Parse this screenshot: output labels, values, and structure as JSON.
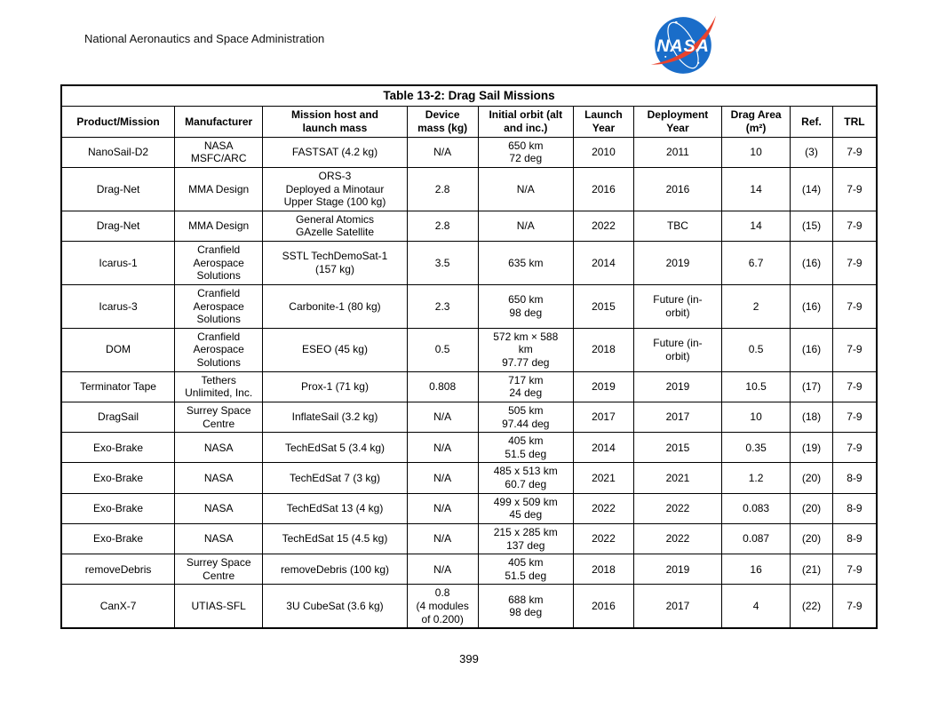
{
  "page": {
    "header_text": "National Aeronautics and Space Administration",
    "page_number": "399"
  },
  "logo": {
    "name": "nasa-insignia",
    "label": "NASA",
    "blue": "#1a6dc9",
    "red": "#e8432e",
    "white": "#ffffff"
  },
  "table": {
    "title": "Table 13-2: Drag Sail Missions",
    "columns": [
      "Product/Mission",
      "Manufacturer",
      "Mission host and\nlaunch mass",
      "Device\nmass (kg)",
      "Initial orbit (alt\nand inc.)",
      "Launch\nYear",
      "Deployment\nYear",
      "Drag Area\n(m²)",
      "Ref.",
      "TRL"
    ],
    "rows": [
      [
        "NanoSail-D2",
        "NASA\nMSFC/ARC",
        "FASTSAT (4.2 kg)",
        "N/A",
        "650 km\n72 deg",
        "2010",
        "2011",
        "10",
        "(3)",
        "7-9"
      ],
      [
        "Drag-Net",
        "MMA Design",
        "ORS-3\nDeployed a Minotaur\nUpper Stage (100 kg)",
        "2.8",
        "N/A",
        "2016",
        "2016",
        "14",
        "(14)",
        "7-9"
      ],
      [
        "Drag-Net",
        "MMA Design",
        "General Atomics\nGAzelle Satellite",
        "2.8",
        "N/A",
        "2022",
        "TBC",
        "14",
        "(15)",
        "7-9"
      ],
      [
        "Icarus-1",
        "Cranfield\nAerospace\nSolutions",
        "SSTL TechDemoSat-1\n(157 kg)",
        "3.5",
        "635 km",
        "2014",
        "2019",
        "6.7",
        "(16)",
        "7-9"
      ],
      [
        "Icarus-3",
        "Cranfield\nAerospace\nSolutions",
        "Carbonite-1 (80 kg)",
        "2.3",
        "650 km\n98 deg",
        "2015",
        "Future (in-\norbit)",
        "2",
        "(16)",
        "7-9"
      ],
      [
        "DOM",
        "Cranfield\nAerospace\nSolutions",
        "ESEO (45 kg)",
        "0.5",
        "572 km × 588\nkm\n97.77 deg",
        "2018",
        "Future (in-\norbit)",
        "0.5",
        "(16)",
        "7-9"
      ],
      [
        "Terminator Tape",
        "Tethers\nUnlimited, Inc.",
        "Prox-1 (71 kg)",
        "0.808",
        "717 km\n24 deg",
        "2019",
        "2019",
        "10.5",
        "(17)",
        "7-9"
      ],
      [
        "DragSail",
        "Surrey Space\nCentre",
        "InflateSail (3.2 kg)",
        "N/A",
        "505 km\n97.44 deg",
        "2017",
        "2017",
        "10",
        "(18)",
        "7-9"
      ],
      [
        "Exo-Brake",
        "NASA",
        "TechEdSat 5 (3.4 kg)",
        "N/A",
        "405 km\n51.5 deg",
        "2014",
        "2015",
        "0.35",
        "(19)",
        "7-9"
      ],
      [
        "Exo-Brake",
        "NASA",
        "TechEdSat 7 (3 kg)",
        "N/A",
        "485 x 513 km\n60.7 deg",
        "2021",
        "2021",
        "1.2",
        "(20)",
        "8-9"
      ],
      [
        "Exo-Brake",
        "NASA",
        "TechEdSat 13 (4 kg)",
        "N/A",
        "499 x 509 km\n45 deg",
        "2022",
        "2022",
        "0.083",
        "(20)",
        "8-9"
      ],
      [
        "Exo-Brake",
        "NASA",
        "TechEdSat 15 (4.5 kg)",
        "N/A",
        "215 x 285 km\n137 deg",
        "2022",
        "2022",
        "0.087",
        "(20)",
        "8-9"
      ],
      [
        "removeDebris",
        "Surrey Space\nCentre",
        "removeDebris (100 kg)",
        "N/A",
        "405 km\n51.5 deg",
        "2018",
        "2019",
        "16",
        "(21)",
        "7-9"
      ],
      [
        "CanX-7",
        "UTIAS-SFL",
        "3U CubeSat (3.6 kg)",
        "0.8\n(4 modules\nof 0.200)",
        "688 km\n98 deg",
        "2016",
        "2017",
        "4",
        "(22)",
        "7-9"
      ]
    ]
  }
}
